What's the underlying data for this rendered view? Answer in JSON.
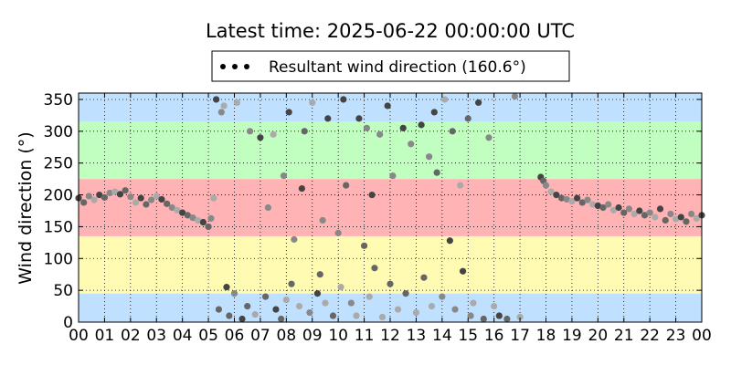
{
  "chart_data": {
    "type": "scatter",
    "title": "Latest time: 2025-06-22 00:00:00 UTC",
    "xlabel": "",
    "ylabel": "Wind direction (°)",
    "xlim": [
      0,
      24
    ],
    "ylim": [
      0,
      360
    ],
    "x_ticks": [
      "00",
      "01",
      "02",
      "03",
      "04",
      "05",
      "06",
      "07",
      "08",
      "09",
      "10",
      "11",
      "12",
      "13",
      "14",
      "15",
      "16",
      "17",
      "18",
      "19",
      "20",
      "21",
      "22",
      "23",
      "00"
    ],
    "y_ticks": [
      0,
      50,
      100,
      150,
      200,
      250,
      300,
      350
    ],
    "grid": true,
    "legend": {
      "placement": "top-center",
      "entries": [
        "Resultant wind direction (160.6°)"
      ]
    },
    "background_bands": [
      {
        "from": 0,
        "to": 45,
        "color": "#bfe0ff"
      },
      {
        "from": 45,
        "to": 135,
        "color": "#fffbb3"
      },
      {
        "from": 135,
        "to": 225,
        "color": "#ffb3b5"
      },
      {
        "from": 225,
        "to": 315,
        "color": "#c0ffbf"
      },
      {
        "from": 315,
        "to": 360,
        "color": "#bfe0ff"
      }
    ],
    "series": [
      {
        "name": "Resultant wind direction (160.6°)",
        "marker_colors": [
          "#444444",
          "#666666",
          "#888888",
          "#aaaaaa"
        ],
        "points": [
          [
            0.0,
            195
          ],
          [
            0.2,
            188
          ],
          [
            0.4,
            198
          ],
          [
            0.6,
            192
          ],
          [
            0.8,
            200
          ],
          [
            1.0,
            196
          ],
          [
            1.2,
            203
          ],
          [
            1.4,
            205
          ],
          [
            1.6,
            201
          ],
          [
            1.8,
            207
          ],
          [
            2.0,
            197
          ],
          [
            2.2,
            188
          ],
          [
            2.4,
            195
          ],
          [
            2.6,
            185
          ],
          [
            2.8,
            192
          ],
          [
            3.0,
            198
          ],
          [
            3.2,
            193
          ],
          [
            3.4,
            186
          ],
          [
            3.6,
            180
          ],
          [
            3.8,
            176
          ],
          [
            4.0,
            172
          ],
          [
            4.2,
            168
          ],
          [
            4.4,
            164
          ],
          [
            4.6,
            160
          ],
          [
            4.8,
            157
          ],
          [
            5.0,
            150
          ],
          [
            5.1,
            163
          ],
          [
            5.2,
            195
          ],
          [
            5.3,
            350
          ],
          [
            5.4,
            20
          ],
          [
            5.5,
            330
          ],
          [
            5.6,
            340
          ],
          [
            5.7,
            55
          ],
          [
            5.8,
            10
          ],
          [
            6.0,
            45
          ],
          [
            6.1,
            345
          ],
          [
            6.3,
            5
          ],
          [
            6.5,
            25
          ],
          [
            6.6,
            300
          ],
          [
            6.8,
            12
          ],
          [
            7.0,
            290
          ],
          [
            7.2,
            40
          ],
          [
            7.3,
            180
          ],
          [
            7.5,
            295
          ],
          [
            7.6,
            20
          ],
          [
            7.8,
            5
          ],
          [
            7.9,
            230
          ],
          [
            8.0,
            35
          ],
          [
            8.1,
            330
          ],
          [
            8.2,
            60
          ],
          [
            8.3,
            130
          ],
          [
            8.5,
            25
          ],
          [
            8.6,
            210
          ],
          [
            8.7,
            300
          ],
          [
            8.9,
            15
          ],
          [
            9.0,
            345
          ],
          [
            9.2,
            45
          ],
          [
            9.3,
            75
          ],
          [
            9.4,
            160
          ],
          [
            9.5,
            30
          ],
          [
            9.6,
            320
          ],
          [
            9.8,
            10
          ],
          [
            10.0,
            140
          ],
          [
            10.1,
            55
          ],
          [
            10.2,
            350
          ],
          [
            10.3,
            215
          ],
          [
            10.5,
            30
          ],
          [
            10.7,
            10
          ],
          [
            10.8,
            320
          ],
          [
            11.0,
            120
          ],
          [
            11.1,
            305
          ],
          [
            11.2,
            40
          ],
          [
            11.3,
            200
          ],
          [
            11.4,
            85
          ],
          [
            11.6,
            295
          ],
          [
            11.7,
            8
          ],
          [
            11.9,
            340
          ],
          [
            12.0,
            60
          ],
          [
            12.1,
            230
          ],
          [
            12.3,
            20
          ],
          [
            12.5,
            305
          ],
          [
            12.6,
            45
          ],
          [
            12.8,
            280
          ],
          [
            13.0,
            15
          ],
          [
            13.2,
            310
          ],
          [
            13.3,
            70
          ],
          [
            13.5,
            260
          ],
          [
            13.6,
            25
          ],
          [
            13.7,
            330
          ],
          [
            13.8,
            235
          ],
          [
            14.0,
            40
          ],
          [
            14.1,
            350
          ],
          [
            14.3,
            128
          ],
          [
            14.4,
            300
          ],
          [
            14.5,
            20
          ],
          [
            14.7,
            215
          ],
          [
            14.8,
            80
          ],
          [
            15.0,
            320
          ],
          [
            15.1,
            10
          ],
          [
            15.2,
            30
          ],
          [
            15.4,
            345
          ],
          [
            15.6,
            5
          ],
          [
            15.8,
            290
          ],
          [
            16.0,
            25
          ],
          [
            16.2,
            10
          ],
          [
            16.5,
            5
          ],
          [
            16.8,
            355
          ],
          [
            17.0,
            8
          ],
          [
            17.8,
            228
          ],
          [
            17.9,
            222
          ],
          [
            18.0,
            215
          ],
          [
            18.2,
            205
          ],
          [
            18.4,
            200
          ],
          [
            18.6,
            195
          ],
          [
            18.8,
            193
          ],
          [
            19.0,
            190
          ],
          [
            19.2,
            195
          ],
          [
            19.4,
            188
          ],
          [
            19.6,
            192
          ],
          [
            19.8,
            185
          ],
          [
            20.0,
            183
          ],
          [
            20.2,
            180
          ],
          [
            20.4,
            185
          ],
          [
            20.6,
            176
          ],
          [
            20.8,
            180
          ],
          [
            21.0,
            172
          ],
          [
            21.2,
            178
          ],
          [
            21.4,
            170
          ],
          [
            21.6,
            175
          ],
          [
            21.8,
            168
          ],
          [
            22.0,
            172
          ],
          [
            22.2,
            165
          ],
          [
            22.4,
            178
          ],
          [
            22.6,
            160
          ],
          [
            22.8,
            170
          ],
          [
            23.0,
            162
          ],
          [
            23.2,
            165
          ],
          [
            23.4,
            158
          ],
          [
            23.6,
            170
          ],
          [
            23.8,
            163
          ],
          [
            24.0,
            168
          ]
        ]
      }
    ]
  }
}
